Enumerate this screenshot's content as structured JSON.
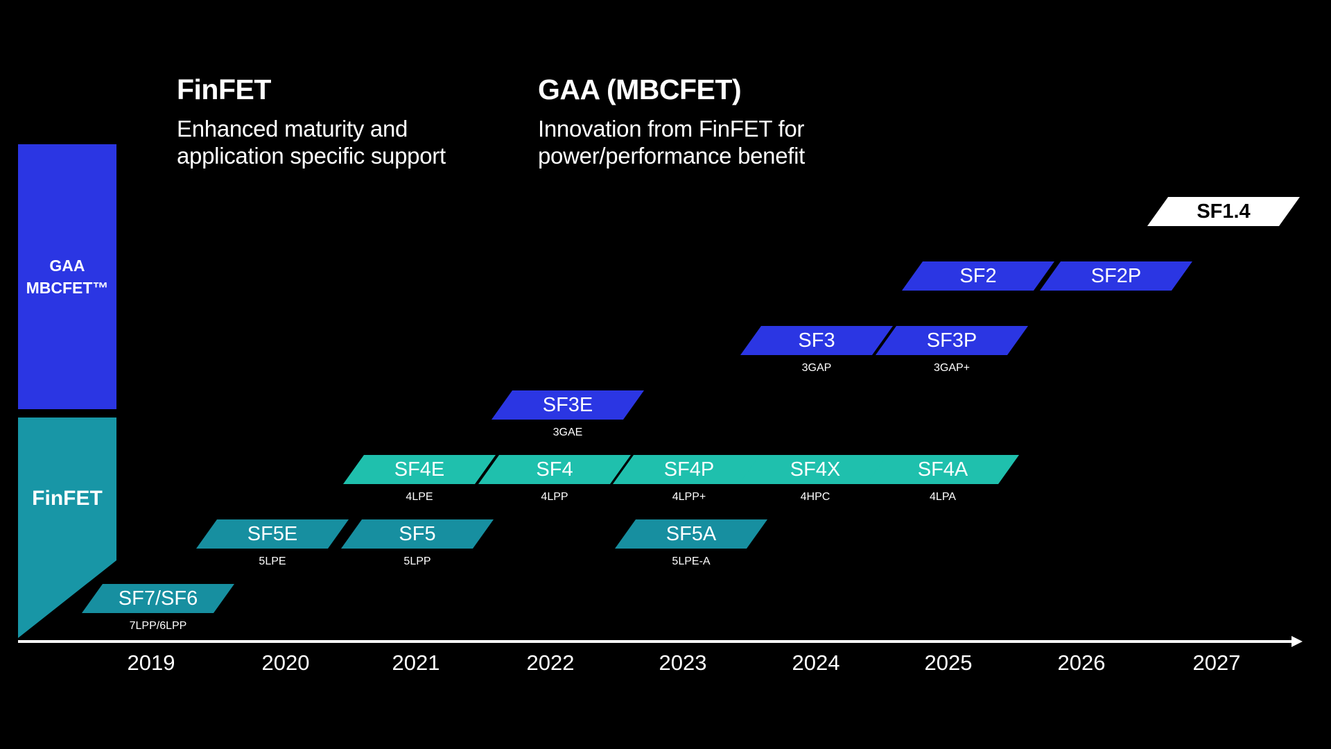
{
  "header": {
    "finfet_title": "FinFET",
    "finfet_subtitle_line1": "Enhanced maturity and",
    "finfet_subtitle_line2": "application specific support",
    "gaa_title": "GAA (MBCFET)",
    "gaa_subtitle_line1": "Innovation from FinFET for",
    "gaa_subtitle_line2": "power/performance benefit"
  },
  "sidebar": {
    "gaa_line1": "GAA",
    "gaa_line2": "MBCFET™",
    "finfet": "FinFET"
  },
  "colors": {
    "gaa": "#2b36e3",
    "finfet_bar": "#1896a6",
    "finfet_dark": "#178fa0",
    "finfet_light": "#1fc0ad",
    "future": "#ffffff"
  },
  "nodes": [
    {
      "id": "sf7",
      "name": "SF7/SF6",
      "sub": "7LPP/6LPP",
      "year": 2019,
      "tech": "FinFET",
      "color": "finfet_dark"
    },
    {
      "id": "sf5e",
      "name": "SF5E",
      "sub": "5LPE",
      "year": 2020,
      "tech": "FinFET",
      "color": "finfet_dark"
    },
    {
      "id": "sf5",
      "name": "SF5",
      "sub": "5LPP",
      "year": 2021,
      "tech": "FinFET",
      "color": "finfet_dark"
    },
    {
      "id": "sf4e",
      "name": "SF4E",
      "sub": "4LPE",
      "year": 2021,
      "tech": "FinFET",
      "color": "finfet_light"
    },
    {
      "id": "sf4",
      "name": "SF4",
      "sub": "4LPP",
      "year": 2022,
      "tech": "FinFET",
      "color": "finfet_light"
    },
    {
      "id": "sf3e",
      "name": "SF3E",
      "sub": "3GAE",
      "year": 2022,
      "tech": "GAA",
      "color": "gaa"
    },
    {
      "id": "sf4p",
      "name": "SF4P",
      "sub": "4LPP+",
      "year": 2023,
      "tech": "FinFET",
      "color": "finfet_light"
    },
    {
      "id": "sf5a",
      "name": "SF5A",
      "sub": "5LPE-A",
      "year": 2023,
      "tech": "FinFET",
      "color": "finfet_dark"
    },
    {
      "id": "sf4x",
      "name": "SF4X",
      "sub": "4HPC",
      "year": 2024,
      "tech": "FinFET",
      "color": "finfet_light"
    },
    {
      "id": "sf3",
      "name": "SF3",
      "sub": "3GAP",
      "year": 2024,
      "tech": "GAA",
      "color": "gaa"
    },
    {
      "id": "sf4a",
      "name": "SF4A",
      "sub": "4LPA",
      "year": 2025,
      "tech": "FinFET",
      "color": "finfet_light"
    },
    {
      "id": "sf3p",
      "name": "SF3P",
      "sub": "3GAP+",
      "year": 2025,
      "tech": "GAA",
      "color": "gaa"
    },
    {
      "id": "sf2",
      "name": "SF2",
      "sub": "",
      "year": 2025,
      "tech": "GAA",
      "color": "gaa"
    },
    {
      "id": "sf2p",
      "name": "SF2P",
      "sub": "",
      "year": 2026,
      "tech": "GAA",
      "color": "gaa"
    },
    {
      "id": "sf14",
      "name": "SF1.4",
      "sub": "",
      "year": 2027,
      "tech": "GAA",
      "color": "future"
    }
  ],
  "axis": {
    "years": [
      "2019",
      "2020",
      "2021",
      "2022",
      "2023",
      "2024",
      "2025",
      "2026",
      "2027"
    ]
  }
}
